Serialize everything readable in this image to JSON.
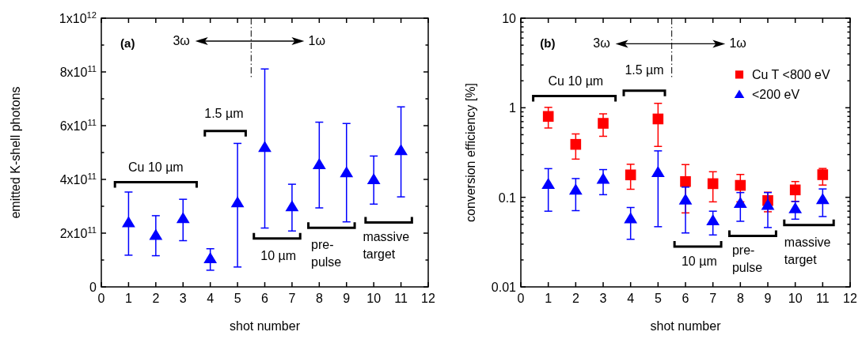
{
  "chart_data": [
    {
      "type": "scatter",
      "xlabel": "shot number",
      "ylabel": "emitted K-shell photons",
      "xlim": [
        0,
        12
      ],
      "xticks": [
        0,
        1,
        2,
        3,
        4,
        5,
        6,
        7,
        8,
        9,
        10,
        11,
        12
      ],
      "ylim": [
        0,
        1000000000000.0
      ],
      "yticks": [
        {
          "value": 0,
          "label": "0"
        },
        {
          "value": 100000000000.0,
          "label": null
        },
        {
          "value": 200000000000.0,
          "label": "2x10$^{11}$"
        },
        {
          "value": 300000000000.0,
          "label": null
        },
        {
          "value": 400000000000.0,
          "label": "4x10$^{11}$"
        },
        {
          "value": 500000000000.0,
          "label": null
        },
        {
          "value": 600000000000.0,
          "label": "6x10$^{11}$"
        },
        {
          "value": 700000000000.0,
          "label": null
        },
        {
          "value": 800000000000.0,
          "label": "8x10$^{11}$"
        },
        {
          "value": 900000000000.0,
          "label": null
        },
        {
          "value": 1000000000000.0,
          "label": "1x10$^{12}$"
        }
      ],
      "legend": false,
      "grid": false,
      "ref_lines": [
        {
          "axis": "x",
          "value": 5.5,
          "line_style": "dashed"
        }
      ],
      "annotations": [
        "(a)",
        "3ω",
        "1ω",
        "Cu 10 µm",
        "1.5 µm",
        "10 µm",
        "pre-\npulse",
        "massive\ntarget"
      ],
      "x": [
        1,
        2,
        3,
        4,
        5,
        6,
        7,
        8,
        9,
        10,
        11
      ],
      "series": [
        {
          "color": "#0000ff",
          "marker": "triangle",
          "values": [
            240000000000.0,
            193000000000.0,
            255000000000.0,
            106000000000.0,
            314000000000.0,
            520000000000.0,
            299000000000.0,
            456000000000.0,
            426000000000.0,
            400000000000.0,
            508000000000.0
          ],
          "errors": [
            [
              118000000000.0,
              353000000000.0
            ],
            [
              116000000000.0,
              265000000000.0
            ],
            [
              172000000000.0,
              326000000000.0
            ],
            [
              62000000000.0,
              142000000000.0
            ],
            [
              74000000000.0,
              534000000000.0
            ],
            [
              219000000000.0,
              811000000000.0
            ],
            [
              208000000000.0,
              382000000000.0
            ],
            [
              294000000000.0,
              613000000000.0
            ],
            [
              242000000000.0,
              608000000000.0
            ],
            [
              308000000000.0,
              487000000000.0
            ],
            [
              335000000000.0,
              670000000000.0
            ]
          ]
        }
      ]
    },
    {
      "type": "scatter",
      "xlabel": "shot number",
      "ylabel": "conversion efficiency [%]",
      "xlim": [
        0,
        12
      ],
      "xticks": [
        0,
        1,
        2,
        3,
        4,
        5,
        6,
        7,
        8,
        9,
        10,
        11,
        12
      ],
      "ylim": [
        0.01,
        10
      ],
      "log": true,
      "yticks": [
        0.01,
        {
          "value": 0.02,
          "label": null
        },
        {
          "value": 0.03,
          "label": null
        },
        {
          "value": 0.04,
          "label": null
        },
        {
          "value": 0.05,
          "label": null
        },
        {
          "value": 0.06,
          "label": null
        },
        {
          "value": 0.07,
          "label": null
        },
        {
          "value": 0.08,
          "label": null
        },
        {
          "value": 0.09,
          "label": null
        },
        0.1,
        {
          "value": 0.2,
          "label": null
        },
        {
          "value": 0.3,
          "label": null
        },
        {
          "value": 0.4,
          "label": null
        },
        {
          "value": 0.5,
          "label": null
        },
        {
          "value": 0.6,
          "label": null
        },
        {
          "value": 0.7,
          "label": null
        },
        {
          "value": 0.8,
          "label": null
        },
        {
          "value": 0.9,
          "label": null
        },
        1,
        {
          "value": 2,
          "label": null
        },
        {
          "value": 3,
          "label": null
        },
        {
          "value": 4,
          "label": null
        },
        {
          "value": 5,
          "label": null
        },
        {
          "value": 6,
          "label": null
        },
        {
          "value": 7,
          "label": null
        },
        {
          "value": 8,
          "label": null
        },
        {
          "value": 9,
          "label": null
        },
        10
      ],
      "legend": "top right",
      "grid": false,
      "ref_lines": [
        {
          "axis": "x",
          "value": 5.5,
          "line_style": "dashed"
        }
      ],
      "annotations": [
        "(b)",
        "3ω",
        "1ω",
        "Cu 10 µm",
        "1.5 µm",
        "10 µm",
        "pre-\npulse",
        "massive\ntarget"
      ],
      "x": [
        1,
        2,
        3,
        4,
        5,
        6,
        7,
        8,
        9,
        10,
        11
      ],
      "series": [
        {
          "name": "Cu T <800 eV",
          "color": "#ff0000",
          "marker": "square",
          "values": [
            0.8,
            0.39,
            0.67,
            0.178,
            0.75,
            0.15,
            0.142,
            0.136,
            0.092,
            0.121,
            0.179
          ],
          "errors": [
            [
              0.594,
              1.01
            ],
            [
              0.267,
              0.51
            ],
            [
              0.48,
              0.855
            ],
            [
              0.123,
              0.234
            ],
            [
              0.37,
              1.12
            ],
            [
              0.067,
              0.232
            ],
            [
              0.089,
              0.193
            ],
            [
              0.089,
              0.18
            ],
            [
              0.069,
              0.114
            ],
            [
              0.09,
              0.15
            ],
            [
              0.137,
              0.21
            ]
          ]
        },
        {
          "name": "<200 eV",
          "color": "#0000ff",
          "marker": "triangle",
          "values": [
            0.14,
            0.121,
            0.16,
            0.058,
            0.19,
            0.094,
            0.055,
            0.086,
            0.082,
            0.075,
            0.095
          ],
          "errors": [
            [
              0.07,
              0.209
            ],
            [
              0.071,
              0.162
            ],
            [
              0.107,
              0.204
            ],
            [
              0.034,
              0.077
            ],
            [
              0.047,
              0.33
            ],
            [
              0.04,
              0.13
            ],
            [
              0.038,
              0.07
            ],
            [
              0.054,
              0.113
            ],
            [
              0.046,
              0.113
            ],
            [
              0.057,
              0.09
            ],
            [
              0.061,
              0.124
            ]
          ]
        }
      ]
    }
  ]
}
